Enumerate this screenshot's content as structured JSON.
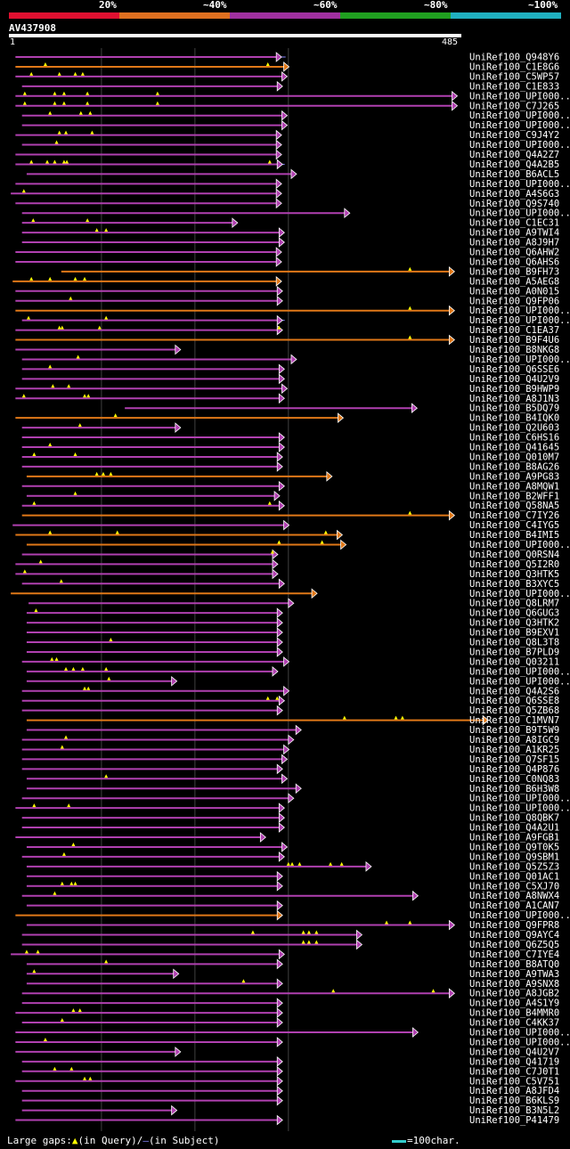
{
  "header": {
    "colors": [
      "#e01030",
      "#e07020",
      "#a030a0",
      "#20a020",
      "#20b0c0"
    ],
    "labels": [
      "20%",
      "~40%",
      "~60%",
      "~80%",
      "~100%"
    ]
  },
  "query": {
    "id": "AV437908",
    "start": "1",
    "end": "485"
  },
  "legend": {
    "text": "Large gaps:",
    "query_symbol": "▲",
    "query_text": "(in Query)/",
    "subject_symbol": "–",
    "subject_text": "(in Subject)",
    "scale_text": "=100char."
  },
  "chart_data": {
    "type": "alignment-overview",
    "x_units": "query residue position",
    "xlim": [
      1,
      485
    ],
    "grid_at": [
      100,
      200,
      300
    ],
    "hits": [
      {
        "name": "UniRef100_Q948Y6",
        "s": 8,
        "e": 287,
        "c": "p",
        "t": [],
        "tail": 10
      },
      {
        "name": "UniRef100_C1E8G6",
        "s": 8,
        "e": 295,
        "c": "o",
        "t": [
          40,
          278
        ],
        "tail": 0
      },
      {
        "name": "UniRef100_C5WP57",
        "s": 8,
        "e": 293,
        "c": "p",
        "t": [
          25,
          55,
          72,
          80
        ],
        "tail": 0
      },
      {
        "name": "UniRef100_C1E833",
        "s": 15,
        "e": 288,
        "c": "p",
        "t": [],
        "tail": 0
      },
      {
        "name": "UniRef100_UPI000..",
        "s": 8,
        "e": 475,
        "c": "p",
        "t": [
          18,
          50,
          60,
          85,
          160
        ],
        "tail": 0
      },
      {
        "name": "UniRef100_C7J265",
        "s": 8,
        "e": 475,
        "c": "p",
        "t": [
          18,
          50,
          60,
          85,
          160
        ],
        "tail": 0
      },
      {
        "name": "UniRef100_UPI000..",
        "s": 15,
        "e": 293,
        "c": "p",
        "t": [
          45,
          78,
          88
        ],
        "tail": 0
      },
      {
        "name": "UniRef100_UPI000..",
        "s": 15,
        "e": 293,
        "c": "p",
        "t": [],
        "tail": 0
      },
      {
        "name": "UniRef100_C9J4Y2",
        "s": 8,
        "e": 287,
        "c": "p",
        "t": [
          55,
          62,
          90
        ],
        "tail": 0
      },
      {
        "name": "UniRef100_UPI000..",
        "s": 15,
        "e": 287,
        "c": "p",
        "t": [
          52
        ],
        "tail": 0
      },
      {
        "name": "UniRef100_Q4A2Z7",
        "s": 8,
        "e": 287,
        "c": "p",
        "t": [],
        "tail": 0
      },
      {
        "name": "UniRef100_Q4A2B5",
        "s": 8,
        "e": 288,
        "c": "p",
        "t": [
          25,
          42,
          50,
          60,
          63,
          280
        ],
        "tail": 8
      },
      {
        "name": "UniRef100_B6ACL5",
        "s": 20,
        "e": 303,
        "c": "p",
        "t": [],
        "tail": 0
      },
      {
        "name": "UniRef100_UPI000..",
        "s": 8,
        "e": 287,
        "c": "p",
        "t": [],
        "tail": 0
      },
      {
        "name": "UniRef100_A4S6G3",
        "s": 3,
        "e": 287,
        "c": "p",
        "t": [
          17
        ],
        "tail": 0
      },
      {
        "name": "UniRef100_Q9S740",
        "s": 8,
        "e": 287,
        "c": "p",
        "t": [],
        "tail": 0
      },
      {
        "name": "UniRef100_UPI000..",
        "s": 15,
        "e": 360,
        "c": "p",
        "t": [],
        "tail": 0
      },
      {
        "name": "UniRef100_C1EC31",
        "s": 15,
        "e": 240,
        "c": "p",
        "t": [
          27,
          85
        ],
        "tail": 0
      },
      {
        "name": "UniRef100_A9TWI4",
        "s": 15,
        "e": 290,
        "c": "p",
        "t": [
          95,
          105
        ],
        "tail": 0
      },
      {
        "name": "UniRef100_A8J9H7",
        "s": 15,
        "e": 290,
        "c": "p",
        "t": [],
        "tail": 0
      },
      {
        "name": "UniRef100_Q6AHW2",
        "s": 8,
        "e": 287,
        "c": "p",
        "t": [],
        "tail": 0
      },
      {
        "name": "UniRef100_Q6AHS6",
        "s": 8,
        "e": 287,
        "c": "p",
        "t": [],
        "tail": 0
      },
      {
        "name": "UniRef100_B9FH73",
        "s": 57,
        "e": 472,
        "c": "o",
        "t": [
          430
        ],
        "tail": 0
      },
      {
        "name": "UniRef100_A5AEG8",
        "s": 5,
        "e": 287,
        "c": "o",
        "t": [
          25,
          45,
          72,
          82
        ],
        "tail": 0
      },
      {
        "name": "UniRef100_A0N015",
        "s": 8,
        "e": 288,
        "c": "p",
        "t": [],
        "tail": 0
      },
      {
        "name": "UniRef100_Q9FP06",
        "s": 8,
        "e": 288,
        "c": "p",
        "t": [
          67
        ],
        "tail": 0
      },
      {
        "name": "UniRef100_UPI000..",
        "s": 8,
        "e": 472,
        "c": "o",
        "t": [
          430
        ],
        "tail": 0
      },
      {
        "name": "UniRef100_UPI000..",
        "s": 15,
        "e": 288,
        "c": "p",
        "t": [
          22,
          105
        ],
        "tail": 8
      },
      {
        "name": "UniRef100_C1EA37",
        "s": 8,
        "e": 288,
        "c": "p",
        "t": [
          55,
          58,
          98,
          290
        ],
        "tail": 0
      },
      {
        "name": "UniRef100_B9F4U6",
        "s": 8,
        "e": 472,
        "c": "o",
        "t": [
          430
        ],
        "tail": 0
      },
      {
        "name": "UniRef100_B8NKG8",
        "s": 8,
        "e": 179,
        "c": "p",
        "t": [],
        "tail": 0
      },
      {
        "name": "UniRef100_UPI000..",
        "s": 15,
        "e": 303,
        "c": "p",
        "t": [
          75
        ],
        "tail": 0
      },
      {
        "name": "UniRef100_Q6SSE6",
        "s": 15,
        "e": 290,
        "c": "p",
        "t": [
          45
        ],
        "tail": 0
      },
      {
        "name": "UniRef100_Q4U2V9",
        "s": 15,
        "e": 290,
        "c": "p",
        "t": [],
        "tail": 0
      },
      {
        "name": "UniRef100_B9HWP9",
        "s": 8,
        "e": 293,
        "c": "p",
        "t": [
          48,
          65
        ],
        "tail": 0
      },
      {
        "name": "UniRef100_A8J1N3",
        "s": 8,
        "e": 290,
        "c": "p",
        "t": [
          17,
          82,
          86
        ],
        "tail": 0
      },
      {
        "name": "UniRef100_B5DQ79",
        "s": 125,
        "e": 432,
        "c": "p",
        "t": [],
        "tail": 0
      },
      {
        "name": "UniRef100_B4IQK0",
        "s": 8,
        "e": 353,
        "c": "o",
        "t": [
          115
        ],
        "tail": 0
      },
      {
        "name": "UniRef100_Q2U603",
        "s": 15,
        "e": 179,
        "c": "p",
        "t": [
          77
        ],
        "tail": 0
      },
      {
        "name": "UniRef100_C6HS16",
        "s": 15,
        "e": 290,
        "c": "p",
        "t": [],
        "tail": 0
      },
      {
        "name": "UniRef100_Q41645",
        "s": 15,
        "e": 290,
        "c": "p",
        "t": [
          45
        ],
        "tail": 0
      },
      {
        "name": "UniRef100_Q010M7",
        "s": 15,
        "e": 288,
        "c": "p",
        "t": [
          28,
          72
        ],
        "tail": 0
      },
      {
        "name": "UniRef100_B8AG26",
        "s": 15,
        "e": 288,
        "c": "p",
        "t": [],
        "tail": 0
      },
      {
        "name": "UniRef100_A9PG83",
        "s": 20,
        "e": 341,
        "c": "o",
        "t": [
          95,
          102,
          110
        ],
        "tail": 0
      },
      {
        "name": "UniRef100_A8MQW1",
        "s": 15,
        "e": 290,
        "c": "p",
        "t": [],
        "tail": 0
      },
      {
        "name": "UniRef100_B2WFF1",
        "s": 20,
        "e": 285,
        "c": "p",
        "t": [
          72
        ],
        "tail": 0
      },
      {
        "name": "UniRef100_Q58NA5",
        "s": 15,
        "e": 290,
        "c": "p",
        "t": [
          28,
          280
        ],
        "tail": 0
      },
      {
        "name": "UniRef100_C7IY26",
        "s": 15,
        "e": 472,
        "c": "o",
        "t": [
          430
        ],
        "tail": 0
      },
      {
        "name": "UniRef100_C4IYG5",
        "s": 5,
        "e": 295,
        "c": "p",
        "t": [],
        "tail": 0
      },
      {
        "name": "UniRef100_B4IMI5",
        "s": 8,
        "e": 352,
        "c": "o",
        "t": [
          45,
          117,
          340
        ],
        "tail": 0
      },
      {
        "name": "UniRef100_UPI000..",
        "s": 20,
        "e": 356,
        "c": "o",
        "t": [
          290,
          336
        ],
        "tail": 0
      },
      {
        "name": "UniRef100_Q0RSN4",
        "s": 15,
        "e": 283,
        "c": "p",
        "t": [
          283
        ],
        "tail": 0
      },
      {
        "name": "UniRef100_Q5I2R0",
        "s": 8,
        "e": 283,
        "c": "p",
        "t": [
          35
        ],
        "tail": 0
      },
      {
        "name": "UniRef100_Q3HTK5",
        "s": 8,
        "e": 283,
        "c": "p",
        "t": [
          18
        ],
        "tail": 6
      },
      {
        "name": "UniRef100_B3XYC5",
        "s": 15,
        "e": 290,
        "c": "p",
        "t": [
          57
        ],
        "tail": 0
      },
      {
        "name": "UniRef100_UPI000..",
        "s": 3,
        "e": 325,
        "c": "o",
        "t": [],
        "tail": 0
      },
      {
        "name": "UniRef100_Q8LRM7",
        "s": 22,
        "e": 300,
        "c": "p",
        "t": [],
        "tail": 0
      },
      {
        "name": "UniRef100_Q6GUG3",
        "s": 20,
        "e": 288,
        "c": "p",
        "t": [
          30
        ],
        "tail": 0
      },
      {
        "name": "UniRef100_Q3HTK2",
        "s": 20,
        "e": 288,
        "c": "p",
        "t": [],
        "tail": 0
      },
      {
        "name": "UniRef100_B9EXV1",
        "s": 20,
        "e": 288,
        "c": "p",
        "t": [],
        "tail": 0
      },
      {
        "name": "UniRef100_Q8L3T8",
        "s": 20,
        "e": 288,
        "c": "p",
        "t": [
          110
        ],
        "tail": 0
      },
      {
        "name": "UniRef100_B7PLD9",
        "s": 20,
        "e": 288,
        "c": "p",
        "t": [],
        "tail": 0
      },
      {
        "name": "UniRef100_Q03211",
        "s": 15,
        "e": 295,
        "c": "p",
        "t": [
          47,
          52
        ],
        "tail": 0
      },
      {
        "name": "UniRef100_UPI000..",
        "s": 20,
        "e": 283,
        "c": "p",
        "t": [
          62,
          70,
          80,
          105
        ],
        "tail": 0
      },
      {
        "name": "UniRef100_UPI000..",
        "s": 20,
        "e": 175,
        "c": "p",
        "t": [
          108
        ],
        "tail": 0
      },
      {
        "name": "UniRef100_Q4A2S6",
        "s": 15,
        "e": 295,
        "c": "p",
        "t": [
          82,
          86
        ],
        "tail": 0
      },
      {
        "name": "UniRef100_Q6SSE8",
        "s": 15,
        "e": 290,
        "c": "p",
        "t": [
          278,
          288
        ],
        "tail": 6
      },
      {
        "name": "UniRef100_Q5ZB68",
        "s": 15,
        "e": 288,
        "c": "p",
        "t": [],
        "tail": 0
      },
      {
        "name": "UniRef100_C1MVN7",
        "s": 20,
        "e": 508,
        "c": "o",
        "t": [
          360,
          415,
          422
        ],
        "tail": 0
      },
      {
        "name": "UniRef100_B9T5W9",
        "s": 20,
        "e": 308,
        "c": "p",
        "t": [],
        "tail": 0
      },
      {
        "name": "UniRef100_A8IGC9",
        "s": 15,
        "e": 300,
        "c": "p",
        "t": [
          62
        ],
        "tail": 0
      },
      {
        "name": "UniRef100_A1KR25",
        "s": 15,
        "e": 295,
        "c": "p",
        "t": [
          58
        ],
        "tail": 0
      },
      {
        "name": "UniRef100_Q7SF15",
        "s": 15,
        "e": 293,
        "c": "p",
        "t": [],
        "tail": 0
      },
      {
        "name": "UniRef100_Q4P876",
        "s": 15,
        "e": 288,
        "c": "p",
        "t": [],
        "tail": 0
      },
      {
        "name": "UniRef100_C0NQ83",
        "s": 20,
        "e": 293,
        "c": "p",
        "t": [
          105
        ],
        "tail": 0
      },
      {
        "name": "UniRef100_B6H3W8",
        "s": 20,
        "e": 308,
        "c": "p",
        "t": [],
        "tail": 0
      },
      {
        "name": "UniRef100_UPI000..",
        "s": 15,
        "e": 300,
        "c": "p",
        "t": [],
        "tail": 0
      },
      {
        "name": "UniRef100_UPI000..",
        "s": 8,
        "e": 290,
        "c": "p",
        "t": [
          28,
          65
        ],
        "tail": 0
      },
      {
        "name": "UniRef100_Q8QBK7",
        "s": 15,
        "e": 290,
        "c": "p",
        "t": [],
        "tail": 0
      },
      {
        "name": "UniRef100_Q4A2U1",
        "s": 15,
        "e": 290,
        "c": "p",
        "t": [],
        "tail": 0
      },
      {
        "name": "UniRef100_A9FGB1",
        "s": 8,
        "e": 270,
        "c": "p",
        "t": [],
        "tail": 0
      },
      {
        "name": "UniRef100_Q9T0K5",
        "s": 20,
        "e": 293,
        "c": "p",
        "t": [
          70
        ],
        "tail": 0
      },
      {
        "name": "UniRef100_Q9SBM1",
        "s": 15,
        "e": 290,
        "c": "p",
        "t": [
          60
        ],
        "tail": 0
      },
      {
        "name": "UniRef100_Q5Z5Z3",
        "s": 20,
        "e": 383,
        "c": "p",
        "t": [
          300,
          304,
          312,
          345,
          357
        ],
        "tail": 0
      },
      {
        "name": "UniRef100_Q01AC1",
        "s": 20,
        "e": 288,
        "c": "p",
        "t": [],
        "tail": 0
      },
      {
        "name": "UniRef100_C5XJ70",
        "s": 20,
        "e": 288,
        "c": "p",
        "t": [
          58,
          68,
          72
        ],
        "tail": 0
      },
      {
        "name": "UniRef100_A8NWX4",
        "s": 15,
        "e": 433,
        "c": "p",
        "t": [
          50
        ],
        "tail": 0
      },
      {
        "name": "UniRef100_A1CAN7",
        "s": 20,
        "e": 288,
        "c": "p",
        "t": [],
        "tail": 0
      },
      {
        "name": "UniRef100_UPI000..",
        "s": 8,
        "e": 288,
        "c": "o",
        "t": [],
        "tail": 0
      },
      {
        "name": "UniRef100_Q9FPR8",
        "s": 20,
        "e": 472,
        "c": "p",
        "t": [
          405,
          430
        ],
        "tail": 0
      },
      {
        "name": "UniRef100_Q9AYC4",
        "s": 15,
        "e": 373,
        "c": "p",
        "t": [
          262,
          316,
          322,
          330
        ],
        "tail": 0
      },
      {
        "name": "UniRef100_Q6Z5Q5",
        "s": 15,
        "e": 373,
        "c": "p",
        "t": [
          316,
          322,
          330
        ],
        "tail": 0
      },
      {
        "name": "UniRef100_C7IYE4",
        "s": 3,
        "e": 290,
        "c": "p",
        "t": [
          20,
          32
        ],
        "tail": 0
      },
      {
        "name": "UniRef100_B8ATQ0",
        "s": 20,
        "e": 288,
        "c": "p",
        "t": [
          105
        ],
        "tail": 0
      },
      {
        "name": "UniRef100_A9TWA3",
        "s": 20,
        "e": 177,
        "c": "p",
        "t": [
          28
        ],
        "tail": 0
      },
      {
        "name": "UniRef100_A9SNX8",
        "s": 20,
        "e": 288,
        "c": "p",
        "t": [
          252
        ],
        "tail": 0
      },
      {
        "name": "UniRef100_A8JGB2",
        "s": 15,
        "e": 472,
        "c": "p",
        "t": [
          348,
          455
        ],
        "tail": 0
      },
      {
        "name": "UniRef100_A4S1Y9",
        "s": 15,
        "e": 288,
        "c": "p",
        "t": [],
        "tail": 0
      },
      {
        "name": "UniRef100_B4MMR0",
        "s": 8,
        "e": 288,
        "c": "p",
        "t": [
          70,
          77
        ],
        "tail": 0
      },
      {
        "name": "UniRef100_C4KK37",
        "s": 15,
        "e": 288,
        "c": "p",
        "t": [
          58
        ],
        "tail": 0
      },
      {
        "name": "UniRef100_UPI000..",
        "s": 8,
        "e": 433,
        "c": "p",
        "t": [],
        "tail": 0
      },
      {
        "name": "UniRef100_UPI000..",
        "s": 8,
        "e": 288,
        "c": "p",
        "t": [
          40
        ],
        "tail": 0
      },
      {
        "name": "UniRef100_Q4U2V7",
        "s": 8,
        "e": 179,
        "c": "p",
        "t": [],
        "tail": 0
      },
      {
        "name": "UniRef100_Q41719",
        "s": 15,
        "e": 288,
        "c": "p",
        "t": [],
        "tail": 0
      },
      {
        "name": "UniRef100_C7J0T1",
        "s": 15,
        "e": 288,
        "c": "p",
        "t": [
          50,
          68
        ],
        "tail": 0
      },
      {
        "name": "UniRef100_C5V751",
        "s": 8,
        "e": 288,
        "c": "p",
        "t": [
          82,
          88
        ],
        "tail": 0
      },
      {
        "name": "UniRef100_A8JFD4",
        "s": 15,
        "e": 288,
        "c": "p",
        "t": [],
        "tail": 0
      },
      {
        "name": "UniRef100_B6KLS9",
        "s": 15,
        "e": 288,
        "c": "p",
        "t": [],
        "tail": 0
      },
      {
        "name": "UniRef100_B3N5L2",
        "s": 15,
        "e": 175,
        "c": "p",
        "t": [],
        "tail": 0
      },
      {
        "name": "UniRef100_P41479",
        "s": 8,
        "e": 288,
        "c": "p",
        "t": [],
        "tail": 0
      }
    ]
  }
}
